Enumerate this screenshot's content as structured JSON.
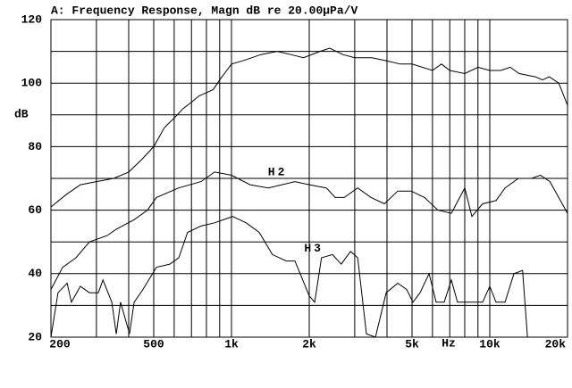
{
  "chart_data": {
    "type": "line",
    "title": "A: Frequency Response, Magn dB re 20.00µPa/V",
    "y_label": "dB",
    "x_label": "Hz",
    "log_x": true,
    "grid": true,
    "xlim": [
      200,
      20000
    ],
    "ylim": [
      20,
      120
    ],
    "xticks": [
      200,
      500,
      {
        "value": 1000,
        "label": "1k"
      },
      {
        "value": 2000,
        "label": "2k"
      },
      {
        "value": 5000,
        "label": "5k"
      },
      {
        "value": 10000,
        "label": "10k"
      },
      {
        "value": 20000,
        "label": "20k"
      }
    ],
    "xgrid": [
      300,
      400,
      600,
      700,
      800,
      900,
      3000,
      4000,
      6000,
      7000,
      8000,
      9000
    ],
    "yticks": [
      20,
      40,
      60,
      80,
      100,
      120
    ],
    "ygrid": [
      30,
      50,
      70,
      90,
      110
    ],
    "series": [
      {
        "color": "#000000",
        "x": [
          200,
          230,
          260,
          300,
          350,
          400,
          450,
          500,
          550,
          600,
          650,
          700,
          750,
          800,
          850,
          900,
          1000,
          1100,
          1200,
          1300,
          1500,
          1700,
          1900,
          2200,
          2400,
          2700,
          3000,
          3500,
          4000,
          4500,
          5000,
          6000,
          6500,
          7000,
          8000,
          9000,
          10000,
          11000,
          12000,
          13000,
          15000,
          16000,
          17000,
          18500,
          20000
        ],
        "values": [
          61,
          65,
          68,
          69,
          70,
          72,
          76,
          80,
          86,
          89,
          92,
          94,
          96,
          97,
          98,
          101,
          106,
          107,
          108,
          109,
          110,
          109,
          108,
          110,
          111,
          109,
          108,
          108,
          107,
          106,
          106,
          104,
          106,
          104,
          103,
          105,
          104,
          104,
          105,
          103,
          102,
          101,
          102,
          100,
          93
        ]
      },
      {
        "name": "H2",
        "color": "#000000",
        "x": [
          200,
          222,
          250,
          282,
          330,
          358,
          420,
          473,
          512,
          625,
          762,
          860,
          1000,
          1180,
          1390,
          1760,
          2000,
          2330,
          2520,
          2730,
          3080,
          3470,
          3910,
          4400,
          4960,
          5590,
          6300,
          7100,
          8000,
          8530,
          9380,
          10570,
          11460,
          12900,
          14500,
          15700,
          17100,
          20000
        ],
        "values": [
          35,
          42,
          45,
          50,
          52,
          54,
          57,
          60,
          64,
          67,
          69,
          72,
          71,
          68,
          67,
          69,
          68,
          67,
          64,
          64,
          67,
          64,
          62,
          66,
          66,
          64,
          60,
          59,
          67,
          58,
          62,
          63,
          67,
          70,
          70,
          71,
          69,
          59
        ]
      },
      {
        "name": "H3",
        "color": "#000000",
        "x": [
          200,
          213,
          231,
          240,
          260,
          282,
          305,
          318,
          344,
          358,
          372,
          403,
          420,
          454,
          512,
          577,
          625,
          676,
          762,
          860,
          1010,
          1140,
          1280,
          1440,
          1630,
          1760,
          2000,
          2100,
          2230,
          2460,
          2660,
          2890,
          3080,
          3330,
          3610,
          3970,
          4400,
          4770,
          5040,
          5370,
          5820,
          6200,
          6660,
          7100,
          7500,
          8130,
          8530,
          9380,
          10000,
          10570,
          11460,
          12400,
          13400,
          14000
        ],
        "values": [
          20,
          34,
          37,
          31,
          36,
          34,
          34,
          38,
          31,
          21,
          31,
          21,
          31,
          35,
          42,
          43,
          45,
          53,
          55,
          56,
          58,
          56,
          53,
          46,
          44,
          44,
          33,
          31,
          45,
          46,
          43,
          47,
          45,
          21,
          20,
          34,
          37,
          35,
          31,
          34,
          40,
          31,
          31,
          38,
          31,
          31,
          31,
          31,
          36,
          31,
          31,
          40,
          41,
          20
        ]
      }
    ]
  }
}
